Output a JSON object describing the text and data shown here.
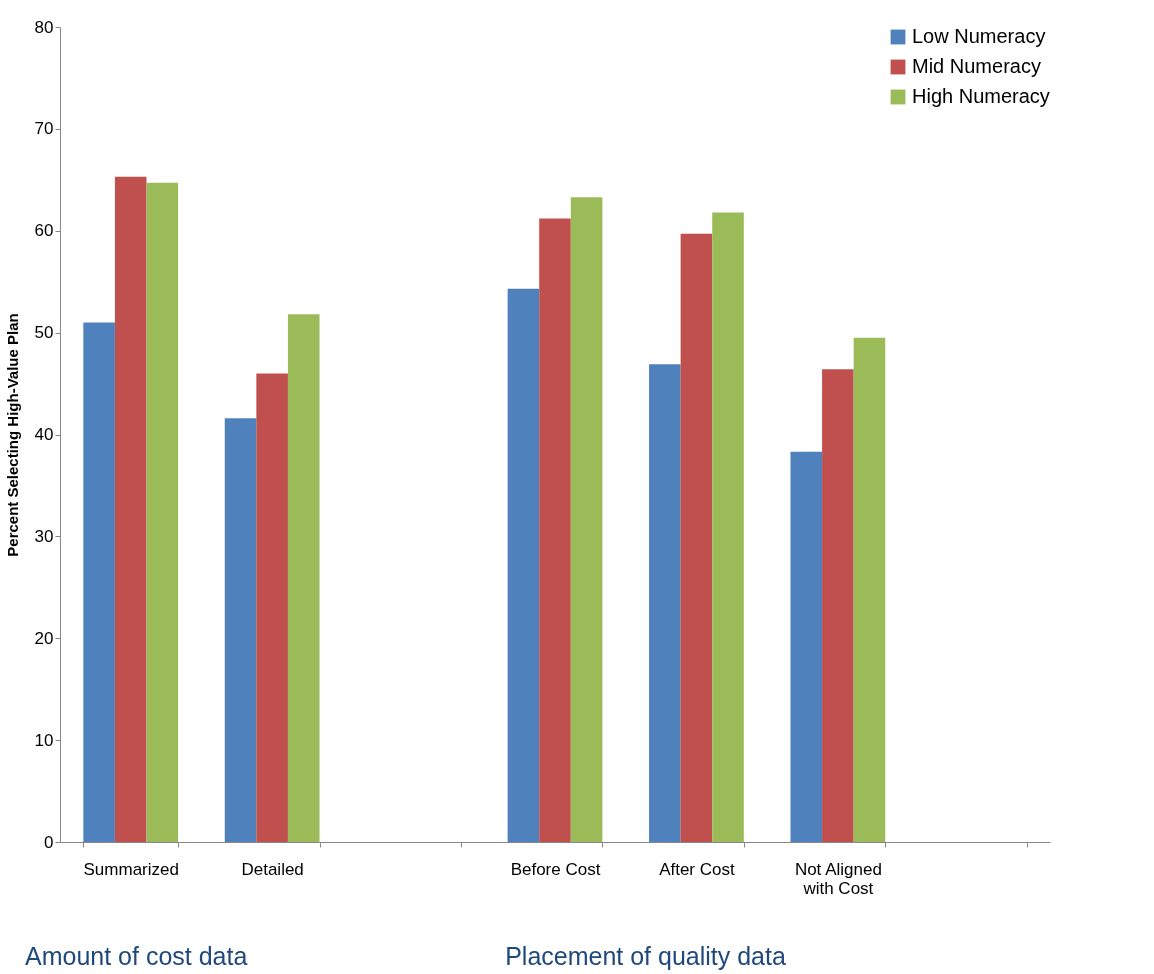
{
  "chart_data": {
    "type": "bar",
    "ylabel": "Percent Selecting High-Value Plan",
    "categories": [
      "Summarized",
      "Detailed",
      null,
      "Before Cost",
      "After Cost",
      "Not Aligned with Cost",
      null
    ],
    "series": [
      {
        "name": "Low Numeracy",
        "color": "#4f81bd",
        "values": [
          51.0,
          41.6,
          null,
          54.3,
          46.9,
          38.3,
          null
        ]
      },
      {
        "name": "Mid Numeracy",
        "color": "#c0504d",
        "values": [
          65.3,
          46.0,
          null,
          61.2,
          59.7,
          46.4,
          null
        ]
      },
      {
        "name": "High Numeracy",
        "color": "#9bbb59",
        "values": [
          64.7,
          51.8,
          null,
          63.3,
          61.8,
          49.5,
          null
        ]
      }
    ],
    "ylim": [
      0,
      80
    ],
    "yticks": [
      0,
      10,
      20,
      30,
      40,
      50,
      60,
      70,
      80
    ],
    "grid": false,
    "legend": "top right",
    "annotations": [
      "Amount of cost data",
      "Placement of quality data"
    ]
  }
}
